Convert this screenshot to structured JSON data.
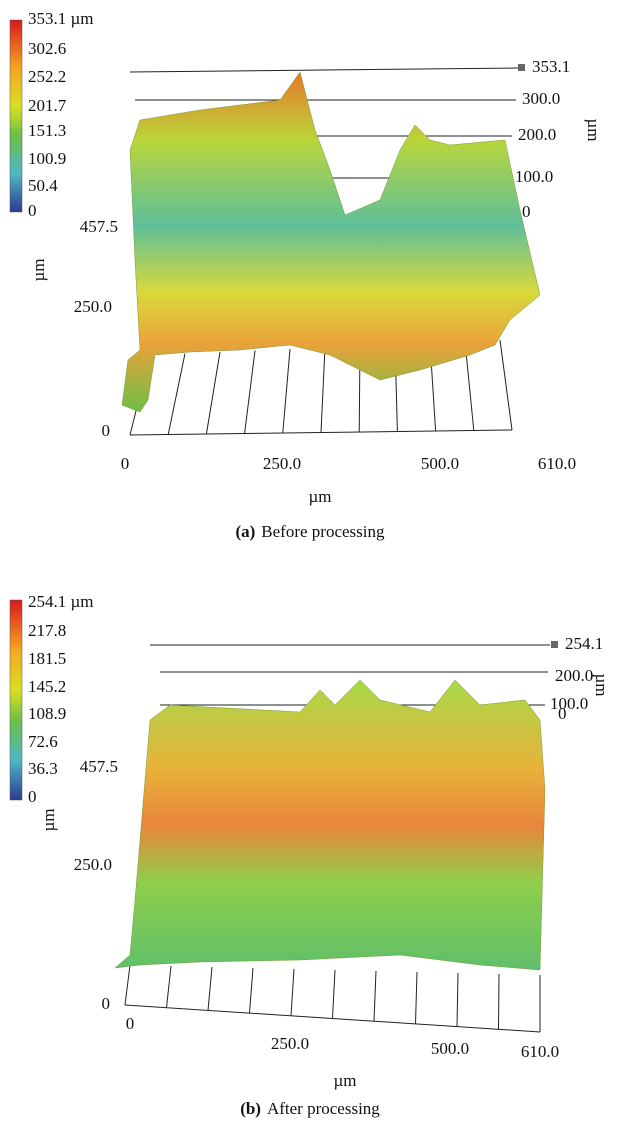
{
  "panels": [
    {
      "colorbar": {
        "labels": [
          "353.1 µm",
          "302.6",
          "252.2",
          "201.7",
          "151.3",
          "100.9",
          "50.4",
          "0"
        ]
      },
      "y_axis": {
        "ticks": [
          "457.5",
          "250.0",
          "0"
        ],
        "label": "µm"
      },
      "x_axis": {
        "ticks": [
          "0",
          "250.0",
          "500.0",
          "610.0"
        ],
        "label": "µm"
      },
      "z_axis": {
        "ticks": [
          "353.1",
          "300.0",
          "200.0",
          "100.0",
          "0"
        ],
        "label": "µm"
      },
      "caption": {
        "letter": "(a)",
        "text": "Before processing"
      }
    },
    {
      "colorbar": {
        "labels": [
          "254.1 µm",
          "217.8",
          "181.5",
          "145.2",
          "108.9",
          "72.6",
          "36.3",
          "0"
        ]
      },
      "y_axis": {
        "ticks": [
          "457.5",
          "250.0",
          "0"
        ],
        "label": "µm"
      },
      "x_axis": {
        "ticks": [
          "0",
          "250.0",
          "500.0",
          "610.0"
        ],
        "label": "µm"
      },
      "z_axis": {
        "ticks": [
          "254.1",
          "200.0",
          "100.0",
          "0"
        ],
        "label": "µm"
      },
      "caption": {
        "letter": "(b)",
        "text": "After processing"
      }
    }
  ]
}
